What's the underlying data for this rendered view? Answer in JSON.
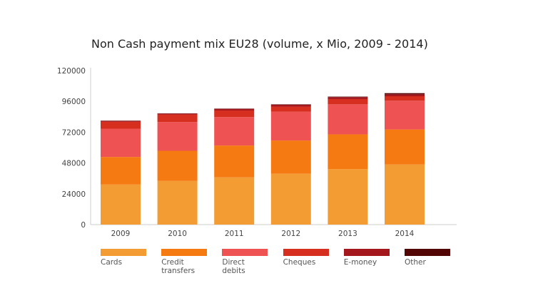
{
  "chart_data": {
    "type": "bar",
    "stacked": true,
    "title": "Non Cash payment mix EU28 (volume, x Mio, 2009 - 2014)",
    "xlabel": "",
    "ylabel": "",
    "categories": [
      "2009",
      "2010",
      "2011",
      "2012",
      "2013",
      "2014"
    ],
    "ylim": [
      0,
      120000
    ],
    "yticks": [
      "0",
      "24000",
      "48000",
      "72000",
      "96000",
      "120000"
    ],
    "grid": false,
    "legend": "bottom",
    "series": [
      {
        "name": "Cards",
        "color": "#f39c34",
        "values": [
          31200,
          34000,
          36800,
          39600,
          43300,
          46800
        ]
      },
      {
        "name": "Credit transfers",
        "color": "#f57a12",
        "values": [
          21500,
          23500,
          24800,
          25900,
          27000,
          27300
        ]
      },
      {
        "name": "Direct debits",
        "color": "#ee5253",
        "values": [
          22000,
          22400,
          22200,
          22500,
          23400,
          22400
        ]
      },
      {
        "name": "Cheques",
        "color": "#d72f1f",
        "values": [
          5400,
          5900,
          5100,
          3900,
          4100,
          3500
        ]
      },
      {
        "name": "E-money",
        "color": "#a4171c",
        "values": [
          700,
          700,
          1300,
          1500,
          1500,
          1500
        ]
      },
      {
        "name": "Other",
        "color": "#520505",
        "values": [
          200,
          200,
          200,
          300,
          400,
          900
        ]
      }
    ]
  }
}
